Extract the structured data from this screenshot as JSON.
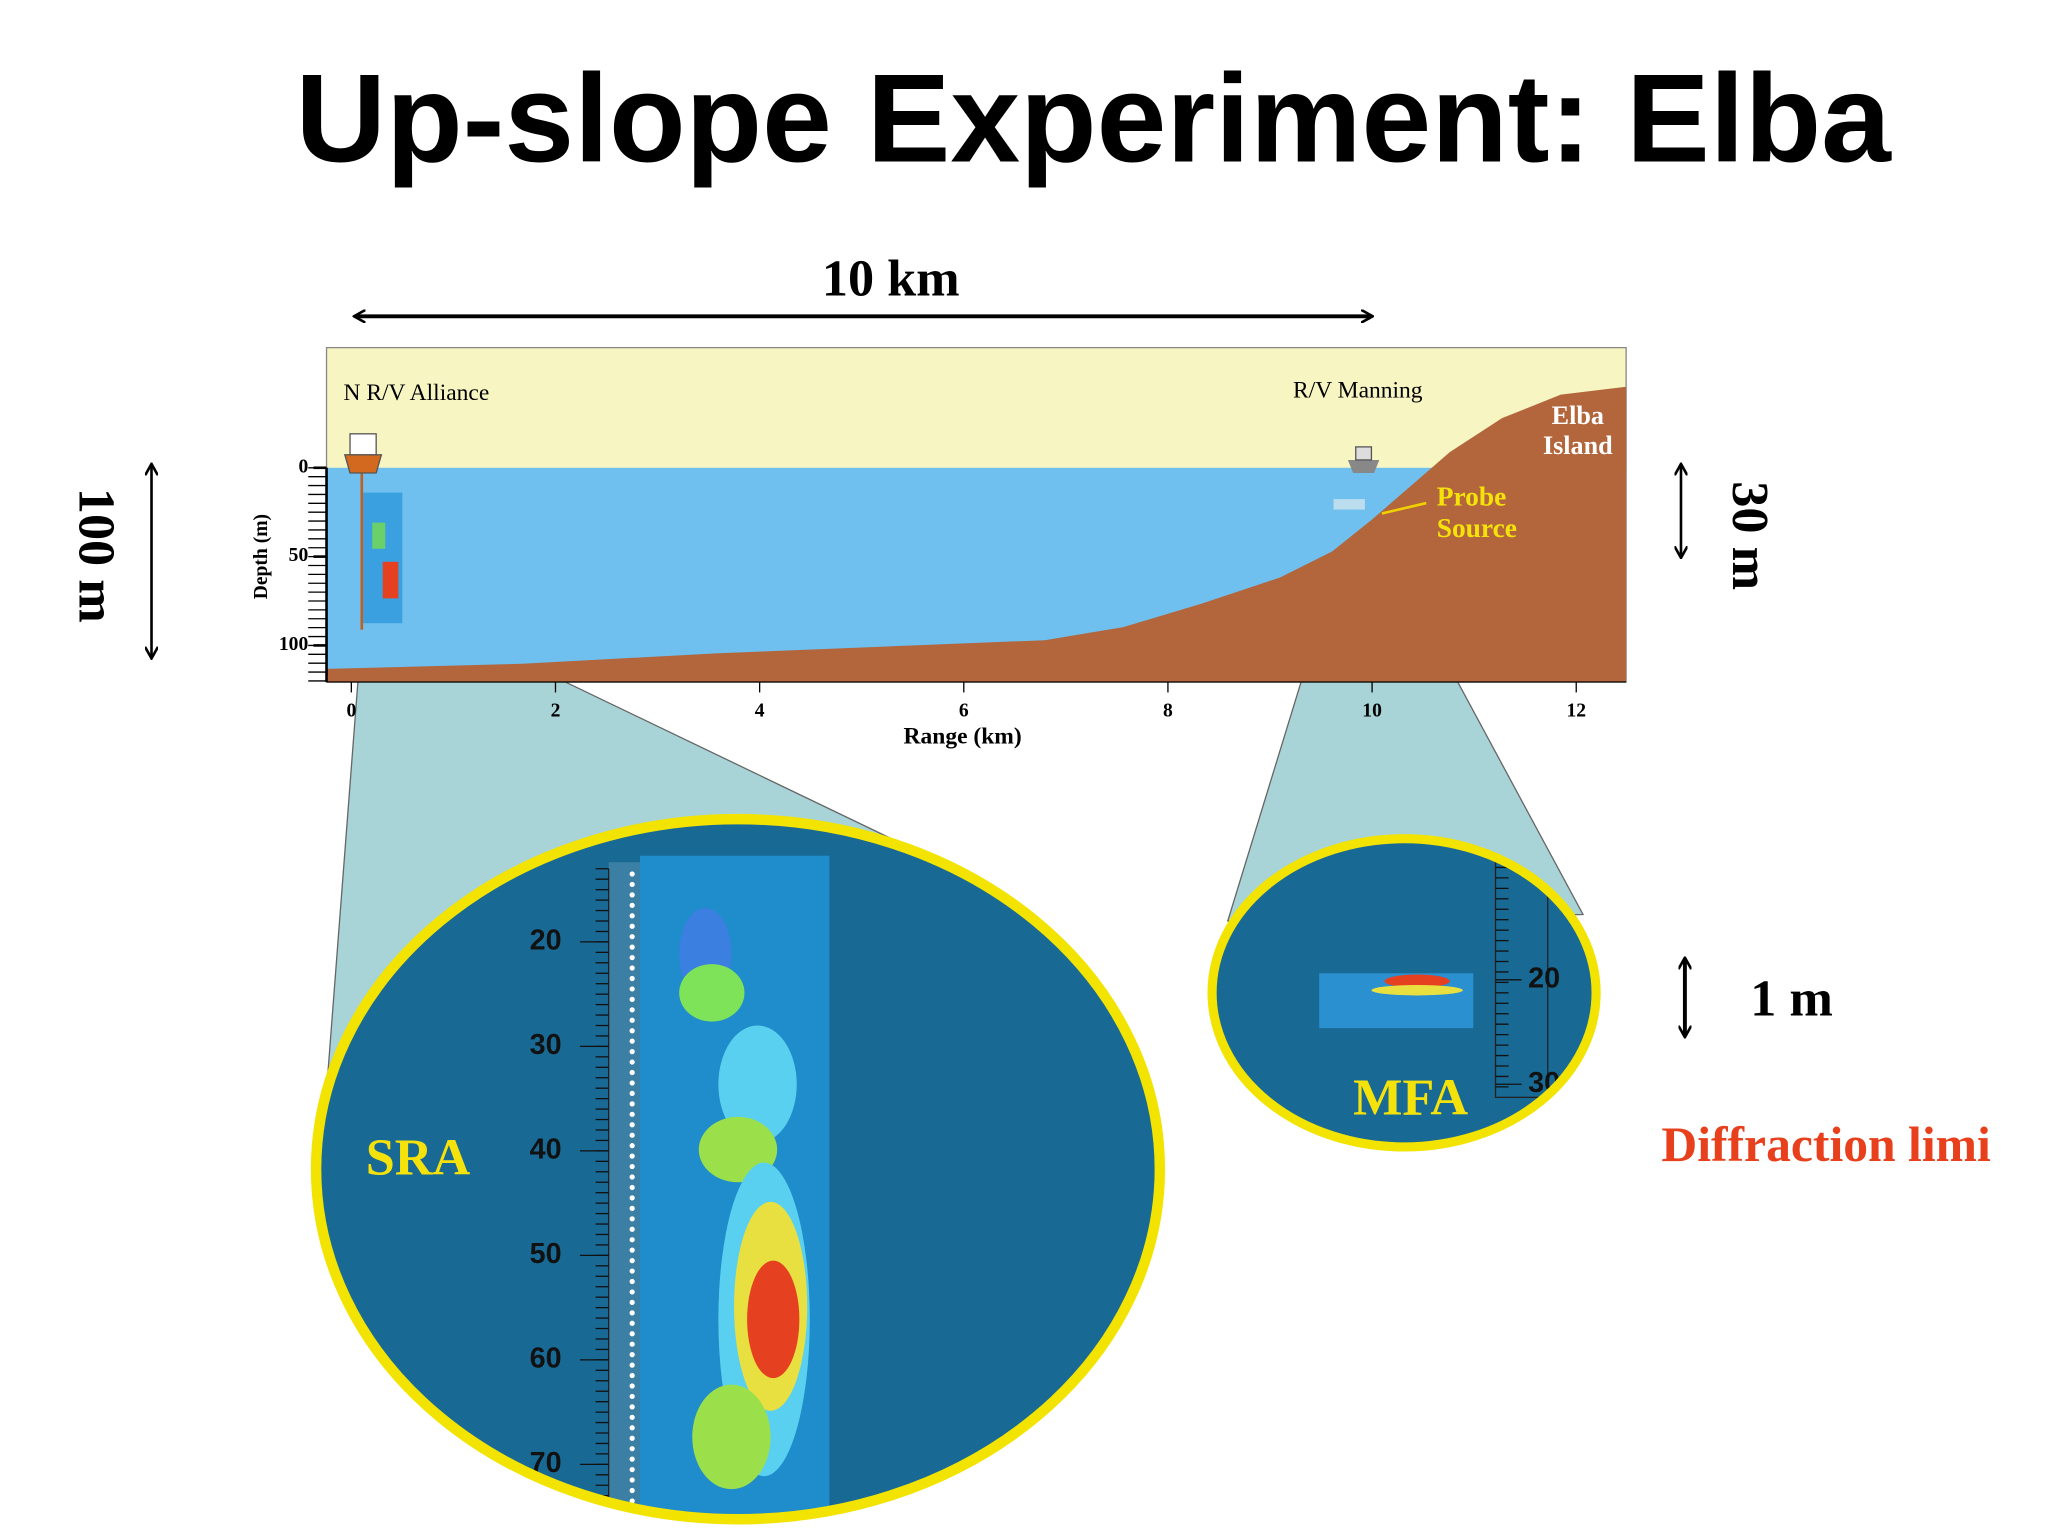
{
  "title": "Up-slope Experiment: Elba",
  "span_label": "10 km",
  "left_scale_label": "100 m",
  "right_scale_label": "30 m",
  "resolution_label": "1 m",
  "note": "Diffraction limi",
  "section": {
    "left_ship": "N R/V Alliance",
    "right_ship": "R/V Manning",
    "island": [
      "Elba",
      "Island"
    ],
    "probe": [
      "Probe",
      "Source"
    ],
    "depth_axis": {
      "title": "Depth (m)",
      "ticks": [
        "0",
        "50",
        "100"
      ]
    },
    "range_axis": {
      "title": "Range (km)",
      "ticks": [
        "0",
        "2",
        "4",
        "6",
        "8",
        "10",
        "12"
      ]
    }
  },
  "zoom_sra": {
    "label": "SRA",
    "ticks": [
      "20",
      "30",
      "40",
      "50",
      "60",
      "70"
    ]
  },
  "zoom_mfa": {
    "label": "MFA",
    "ticks": [
      "20",
      "30"
    ]
  }
}
